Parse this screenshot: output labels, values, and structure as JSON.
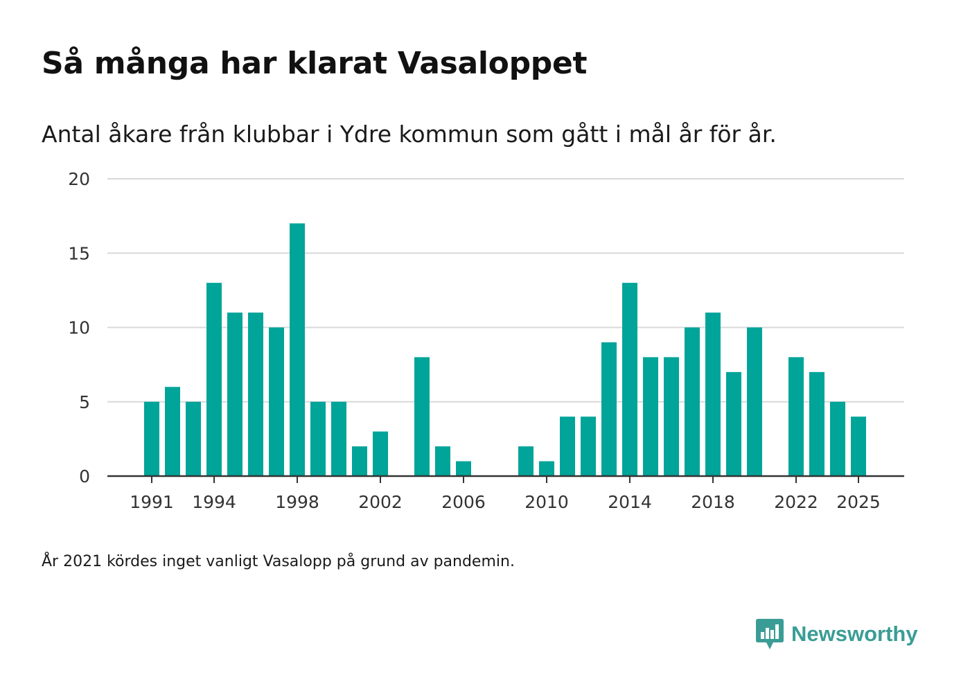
{
  "title": "Så många har klarat Vasaloppet",
  "subtitle": "Antal åkare från klubbar i Ydre kommun som gått i mål år för år.",
  "footnote": "År 2021 kördes inget vanligt Vasalopp på grund av pandemin.",
  "brand": {
    "name": "Newsworthy",
    "icon": "newsworthy-logo-icon",
    "color": "#3a9d95"
  },
  "colors": {
    "bar": "#00a499",
    "grid": "#d9d9d9",
    "axis": "#333333",
    "tick_text": "#333333"
  },
  "chart_data": {
    "type": "bar",
    "title": "Så många har klarat Vasaloppet",
    "subtitle": "Antal åkare från klubbar i Ydre kommun som gått i mål år för år.",
    "xlabel": "",
    "ylabel": "",
    "ylim": [
      0,
      20
    ],
    "yticks": [
      0,
      5,
      10,
      15,
      20
    ],
    "xticks": [
      1991,
      1994,
      1998,
      2002,
      2006,
      2010,
      2014,
      2018,
      2022,
      2025
    ],
    "grid": true,
    "categories": [
      1991,
      1992,
      1993,
      1994,
      1995,
      1996,
      1997,
      1998,
      1999,
      2000,
      2001,
      2002,
      2003,
      2004,
      2005,
      2006,
      2007,
      2008,
      2009,
      2010,
      2011,
      2012,
      2013,
      2014,
      2015,
      2016,
      2017,
      2018,
      2019,
      2020,
      2021,
      2022,
      2023,
      2024,
      2025
    ],
    "values": [
      5,
      6,
      5,
      13,
      11,
      11,
      10,
      17,
      5,
      5,
      2,
      3,
      0,
      8,
      2,
      1,
      0,
      0,
      2,
      1,
      4,
      4,
      9,
      13,
      8,
      8,
      10,
      11,
      7,
      10,
      0,
      8,
      7,
      5,
      4
    ]
  }
}
